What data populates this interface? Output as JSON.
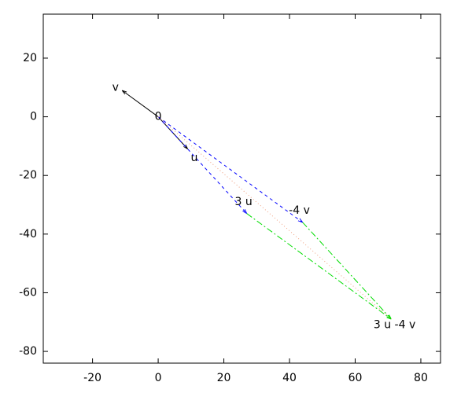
{
  "chart_data": {
    "type": "vector",
    "xlim": [
      -35,
      86
    ],
    "ylim": [
      -84,
      35
    ],
    "xticks": [
      -20,
      0,
      20,
      40,
      60,
      80
    ],
    "yticks": [
      -80,
      -60,
      -40,
      -20,
      0,
      20
    ],
    "series": [
      {
        "color": "#000000",
        "dash": "solid",
        "arrow": true,
        "x": [
          0,
          -11
        ],
        "y": [
          0,
          9
        ]
      },
      {
        "color": "#000000",
        "dash": "solid",
        "arrow": true,
        "x": [
          0,
          9
        ],
        "y": [
          0,
          -11
        ]
      },
      {
        "color": "#0000ff",
        "dash": "dashed",
        "arrow": true,
        "x": [
          0,
          27
        ],
        "y": [
          0,
          -33
        ]
      },
      {
        "color": "#0000ff",
        "dash": "dashed",
        "arrow": true,
        "x": [
          0,
          44
        ],
        "y": [
          0,
          -36
        ]
      },
      {
        "color": "#00dd00",
        "dash": "dashdot",
        "arrow": true,
        "x": [
          27,
          71
        ],
        "y": [
          -33,
          -69
        ]
      },
      {
        "color": "#00dd00",
        "dash": "dashdot",
        "arrow": true,
        "x": [
          44,
          71
        ],
        "y": [
          -36,
          -69
        ]
      },
      {
        "color": "#f0a080",
        "dash": "dotted",
        "arrow": false,
        "x": [
          0,
          71
        ],
        "y": [
          0,
          -69
        ]
      }
    ],
    "annotations": [
      {
        "text": "v",
        "x": -13,
        "y": 10
      },
      {
        "text": "0",
        "x": 0,
        "y": 0
      },
      {
        "text": "u",
        "x": 11,
        "y": -14
      },
      {
        "text": "3 u",
        "x": 26,
        "y": -29
      },
      {
        "text": "-4 v",
        "x": 43,
        "y": -32
      },
      {
        "text": "3 u -4 v",
        "x": 72,
        "y": -71
      }
    ]
  }
}
